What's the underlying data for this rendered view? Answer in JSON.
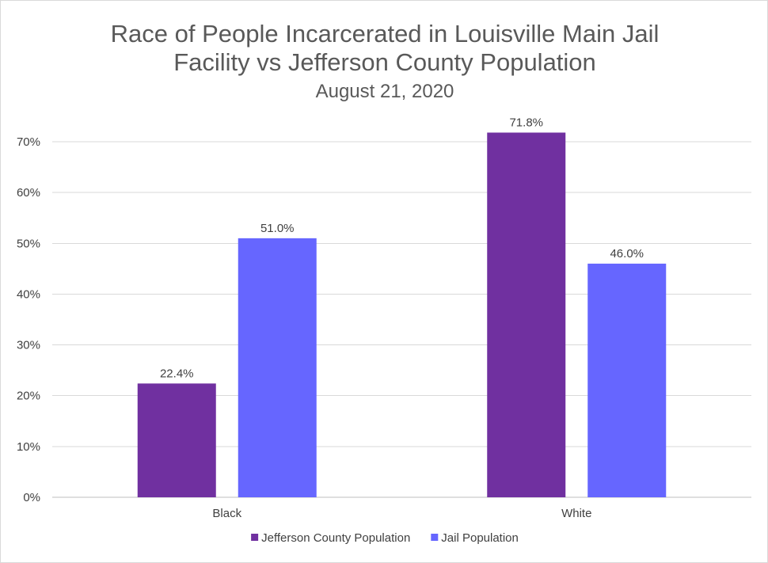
{
  "chart_data": {
    "type": "bar",
    "title_lines": [
      "Race of People Incarcerated in Louisville Main Jail",
      "Facility vs Jefferson County Population"
    ],
    "subtitle": "August 21, 2020",
    "categories": [
      "Black",
      "White"
    ],
    "series": [
      {
        "name": "Jefferson County Population",
        "color": "#7030a0",
        "values": [
          22.4,
          71.8
        ],
        "labels": [
          "22.4%",
          "71.8%"
        ]
      },
      {
        "name": "Jail Population",
        "color": "#6666ff",
        "values": [
          51.0,
          46.0
        ],
        "labels": [
          "51.0%",
          "46.0%"
        ]
      }
    ],
    "y_ticks": [
      0,
      10,
      20,
      30,
      40,
      50,
      60,
      70
    ],
    "y_tick_labels": [
      "0%",
      "10%",
      "20%",
      "30%",
      "40%",
      "50%",
      "60%",
      "70%"
    ],
    "ylim": [
      0,
      70
    ],
    "grid": true,
    "legend_position": "bottom"
  }
}
